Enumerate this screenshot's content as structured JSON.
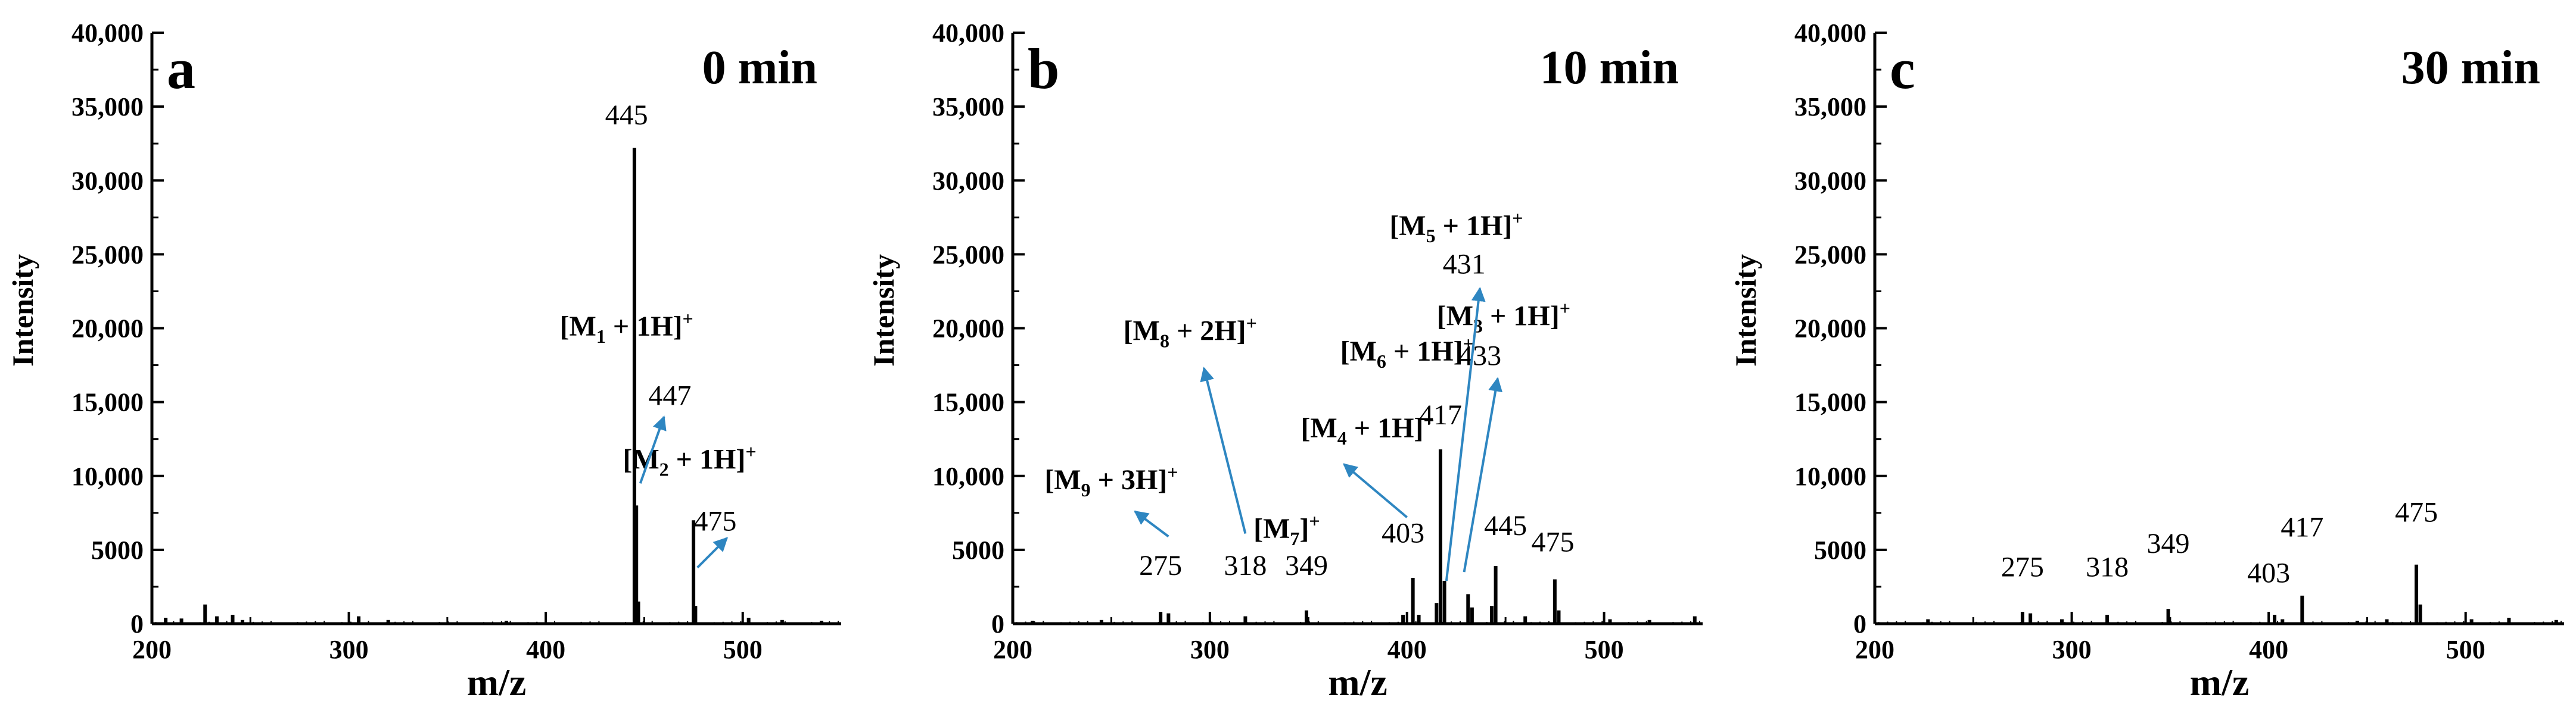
{
  "colors": {
    "stick": "#000000",
    "arrow": "#2e86c1",
    "axis": "#000000"
  },
  "chart_data": [
    {
      "type": "bar",
      "panel": "a",
      "title": "0 min",
      "xlabel": "m/z",
      "ylabel": "Intensity",
      "xlim": [
        200,
        550
      ],
      "ylim": [
        0,
        40000
      ],
      "xticks": [
        "200",
        "300",
        "400",
        "500"
      ],
      "yticks": [
        "0",
        "5000",
        "10,000",
        "15,000",
        "20,000",
        "25,000",
        "30,000",
        "35,000",
        "40,000"
      ],
      "peaks": [
        {
          "mz": 207,
          "intensity": 400
        },
        {
          "mz": 215,
          "intensity": 350
        },
        {
          "mz": 227,
          "intensity": 1300
        },
        {
          "mz": 233,
          "intensity": 500
        },
        {
          "mz": 241,
          "intensity": 600
        },
        {
          "mz": 246,
          "intensity": 250
        },
        {
          "mz": 305,
          "intensity": 500
        },
        {
          "mz": 320,
          "intensity": 250
        },
        {
          "mz": 380,
          "intensity": 200
        },
        {
          "mz": 445,
          "intensity": 32200
        },
        {
          "mz": 446,
          "intensity": 8000
        },
        {
          "mz": 447,
          "intensity": 1500
        },
        {
          "mz": 475,
          "intensity": 7000
        },
        {
          "mz": 476,
          "intensity": 1200
        },
        {
          "mz": 503,
          "intensity": 400
        },
        {
          "mz": 520,
          "intensity": 250
        },
        {
          "mz": 540,
          "intensity": 200
        }
      ],
      "peak_labels": [
        {
          "text": "445",
          "mz": 441,
          "intensity": 33800
        }
      ],
      "ion_labels": [
        {
          "main": "[M",
          "sub": "1",
          "rest": " + 1H]",
          "sup": "+",
          "mz": 441,
          "intensity": 19500
        },
        {
          "main": "[M",
          "sub": "2",
          "rest": " + 1H]",
          "sup": "+",
          "mz": 473,
          "intensity": 10500
        }
      ],
      "mz_labels": [
        {
          "text": "447",
          "mz": 463,
          "intensity": 14800
        },
        {
          "text": "475",
          "mz": 486,
          "intensity": 6300
        }
      ],
      "arrows": [
        {
          "from": [
            448,
            9500
          ],
          "to": [
            460,
            14000
          ]
        },
        {
          "from": [
            477,
            3800
          ],
          "to": [
            492,
            5800
          ]
        }
      ]
    },
    {
      "type": "bar",
      "panel": "b",
      "title": "10 min",
      "xlabel": "m/z",
      "ylabel": "Intensity",
      "xlim": [
        200,
        550
      ],
      "ylim": [
        0,
        40000
      ],
      "xticks": [
        "200",
        "300",
        "400",
        "500"
      ],
      "yticks": [
        "0",
        "5000",
        "10,000",
        "15,000",
        "20,000",
        "25,000",
        "30,000",
        "35,000",
        "40,000"
      ],
      "peaks": [
        {
          "mz": 210,
          "intensity": 200
        },
        {
          "mz": 245,
          "intensity": 250
        },
        {
          "mz": 275,
          "intensity": 800
        },
        {
          "mz": 279,
          "intensity": 700
        },
        {
          "mz": 318,
          "intensity": 500
        },
        {
          "mz": 349,
          "intensity": 900
        },
        {
          "mz": 398,
          "intensity": 600
        },
        {
          "mz": 403,
          "intensity": 3100
        },
        {
          "mz": 406,
          "intensity": 600
        },
        {
          "mz": 415,
          "intensity": 1400
        },
        {
          "mz": 417,
          "intensity": 11800
        },
        {
          "mz": 419,
          "intensity": 2900
        },
        {
          "mz": 431,
          "intensity": 2000
        },
        {
          "mz": 433,
          "intensity": 1100
        },
        {
          "mz": 443,
          "intensity": 1200
        },
        {
          "mz": 445,
          "intensity": 3900
        },
        {
          "mz": 460,
          "intensity": 500
        },
        {
          "mz": 475,
          "intensity": 3000
        },
        {
          "mz": 477,
          "intensity": 900
        },
        {
          "mz": 503,
          "intensity": 300
        },
        {
          "mz": 523,
          "intensity": 250
        },
        {
          "mz": 546,
          "intensity": 500
        }
      ],
      "peak_labels": [
        {
          "text": "275",
          "mz": 275,
          "intensity": 3300
        },
        {
          "text": "318",
          "mz": 318,
          "intensity": 3300
        },
        {
          "text": "349",
          "mz": 349,
          "intensity": 3300
        },
        {
          "text": "403",
          "mz": 398,
          "intensity": 5500
        },
        {
          "text": "417",
          "mz": 417,
          "intensity": 13500
        },
        {
          "text": "445",
          "mz": 450,
          "intensity": 6000
        },
        {
          "text": "475",
          "mz": 474,
          "intensity": 4900
        },
        {
          "text": "431",
          "mz": 429,
          "intensity": 23700
        },
        {
          "text": "433",
          "mz": 437,
          "intensity": 17500
        }
      ],
      "ion_labels": [
        {
          "main": "[M",
          "sub": "9",
          "rest": " + 3H]",
          "sup": "+",
          "mz": 250,
          "intensity": 9100
        },
        {
          "main": "[M",
          "sub": "8",
          "rest": " + 2H]",
          "sup": "+",
          "mz": 290,
          "intensity": 19200
        },
        {
          "main": "[M",
          "sub": "4",
          "rest": " + 1H]",
          "sup": "+",
          "mz": 380,
          "intensity": 12600
        },
        {
          "main": "[M",
          "sub": "7",
          "rest": "]",
          "sup": "+",
          "mz": 339,
          "intensity": 5800
        },
        {
          "main": "[M",
          "sub": "6",
          "rest": " + 1H]",
          "sup": "+",
          "mz": 400,
          "intensity": 17800
        },
        {
          "main": "[M",
          "sub": "5",
          "rest": " + 1H]",
          "sup": "+",
          "mz": 425,
          "intensity": 26300
        },
        {
          "main": "[M",
          "sub": "3",
          "rest": " + 1H]",
          "sup": "+",
          "mz": 449,
          "intensity": 20200
        }
      ],
      "mz_labels": [],
      "arrows": [
        {
          "from": [
            279,
            5900
          ],
          "to": [
            262,
            7600
          ]
        },
        {
          "from": [
            318,
            6100
          ],
          "to": [
            297,
            17300
          ]
        },
        {
          "from": [
            400,
            7200
          ],
          "to": [
            368,
            10800
          ]
        },
        {
          "from": [
            420,
            2900
          ],
          "to": [
            437,
            22700
          ]
        },
        {
          "from": [
            429,
            3500
          ],
          "to": [
            446,
            16600
          ]
        }
      ]
    },
    {
      "type": "bar",
      "panel": "c",
      "title": "30 min",
      "xlabel": "m/z",
      "ylabel": "Intensity",
      "xlim": [
        200,
        550
      ],
      "ylim": [
        0,
        40000
      ],
      "xticks": [
        "200",
        "300",
        "400",
        "500"
      ],
      "yticks": [
        "0",
        "5000",
        "10,000",
        "15,000",
        "20,000",
        "25,000",
        "30,000",
        "35,000",
        "40,000"
      ],
      "peaks": [
        {
          "mz": 227,
          "intensity": 300
        },
        {
          "mz": 275,
          "intensity": 800
        },
        {
          "mz": 279,
          "intensity": 700
        },
        {
          "mz": 295,
          "intensity": 300
        },
        {
          "mz": 318,
          "intensity": 600
        },
        {
          "mz": 349,
          "intensity": 1000
        },
        {
          "mz": 403,
          "intensity": 600
        },
        {
          "mz": 407,
          "intensity": 300
        },
        {
          "mz": 417,
          "intensity": 1900
        },
        {
          "mz": 445,
          "intensity": 200
        },
        {
          "mz": 460,
          "intensity": 300
        },
        {
          "mz": 475,
          "intensity": 4000
        },
        {
          "mz": 477,
          "intensity": 1300
        },
        {
          "mz": 503,
          "intensity": 300
        },
        {
          "mz": 522,
          "intensity": 400
        },
        {
          "mz": 546,
          "intensity": 250
        }
      ],
      "peak_labels": [
        {
          "text": "275",
          "mz": 275,
          "intensity": 3200
        },
        {
          "text": "318",
          "mz": 318,
          "intensity": 3200
        },
        {
          "text": "349",
          "mz": 349,
          "intensity": 4800
        },
        {
          "text": "403",
          "mz": 400,
          "intensity": 2800
        },
        {
          "text": "417",
          "mz": 417,
          "intensity": 5900
        },
        {
          "text": "475",
          "mz": 475,
          "intensity": 6900
        }
      ],
      "ion_labels": [],
      "mz_labels": [],
      "arrows": []
    }
  ]
}
